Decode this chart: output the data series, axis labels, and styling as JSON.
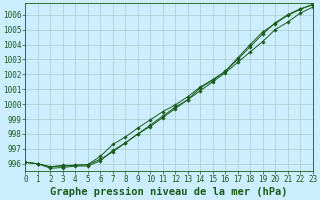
{
  "title": "Graphe pression niveau de la mer (hPa)",
  "bg_color": "#cceeff",
  "grid_color": "#aacccc",
  "line_color": "#1a5c1a",
  "marker_color": "#1a5c1a",
  "xlim": [
    0,
    23
  ],
  "ylim": [
    995.5,
    1006.8
  ],
  "xticks": [
    0,
    1,
    2,
    3,
    4,
    5,
    6,
    7,
    8,
    9,
    10,
    11,
    12,
    13,
    14,
    15,
    16,
    17,
    18,
    19,
    20,
    21,
    22,
    23
  ],
  "yticks": [
    996,
    997,
    998,
    999,
    1000,
    1001,
    1002,
    1003,
    1004,
    1005,
    1006
  ],
  "line1_x": [
    0,
    1,
    2,
    3,
    4,
    5,
    6,
    7,
    8,
    9,
    10,
    11,
    12,
    13,
    14,
    15,
    16,
    17,
    18,
    19,
    20,
    21,
    22,
    23
  ],
  "line1_y": [
    996.1,
    996.0,
    995.8,
    995.9,
    995.9,
    995.95,
    996.3,
    996.8,
    997.4,
    998.0,
    998.6,
    999.2,
    999.8,
    1000.3,
    1000.9,
    1001.5,
    1002.1,
    1002.8,
    1003.5,
    1004.2,
    1005.0,
    1005.5,
    1006.1,
    1006.5
  ],
  "line2_x": [
    0,
    1,
    2,
    3,
    4,
    5,
    6,
    7,
    8,
    9,
    10,
    11,
    12,
    13,
    14,
    15,
    16,
    17,
    18,
    19,
    20,
    21,
    22,
    23
  ],
  "line2_y": [
    996.1,
    996.0,
    995.8,
    995.85,
    995.9,
    995.95,
    996.5,
    997.3,
    997.8,
    998.4,
    998.95,
    999.5,
    999.95,
    1000.5,
    1001.15,
    1001.65,
    1002.2,
    1003.0,
    1003.85,
    1004.7,
    1005.45,
    1006.0,
    1006.4,
    1006.65
  ],
  "line3_x": [
    0,
    1,
    2,
    3,
    4,
    5,
    6,
    7,
    8,
    9,
    10,
    11,
    12,
    13,
    14,
    15,
    16,
    17,
    18,
    19,
    20,
    21,
    22,
    23
  ],
  "line3_y": [
    996.1,
    996.0,
    995.7,
    995.75,
    995.85,
    995.85,
    996.2,
    996.9,
    997.4,
    998.0,
    998.5,
    999.1,
    999.7,
    1000.3,
    1001.1,
    1001.6,
    1002.2,
    1003.1,
    1004.0,
    1004.85,
    1005.4,
    1005.95,
    1006.35,
    1006.7
  ],
  "tick_fontsize": 5.5,
  "title_fontsize": 7.5,
  "figwidth": 3.2,
  "figheight": 2.0,
  "dpi": 100
}
